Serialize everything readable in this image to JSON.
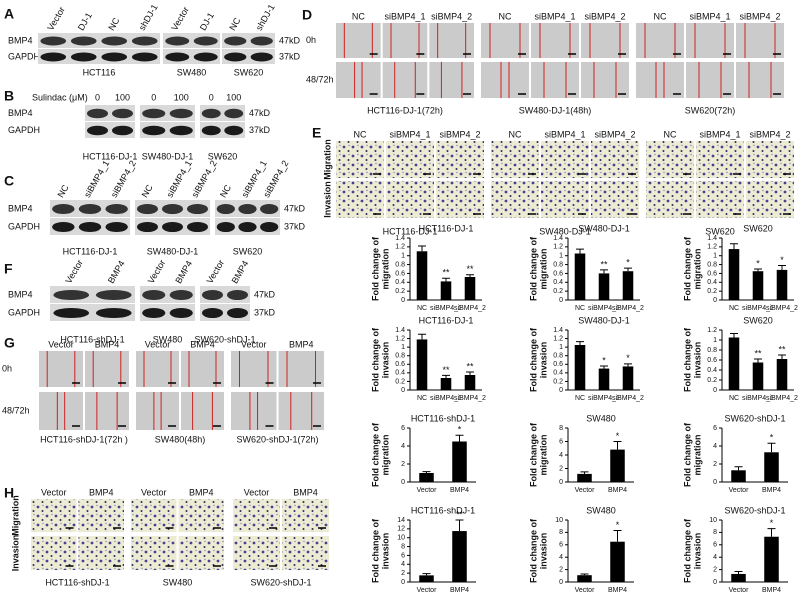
{
  "blots": [
    {
      "label": "A",
      "lanes": [
        [
          "Vector",
          "DJ-1",
          "NC",
          "shDJ-1"
        ],
        [
          "Vector",
          "DJ-1"
        ],
        [
          "NC",
          "shDJ-1"
        ]
      ],
      "rows": [
        "BMP4",
        "GAPDH"
      ],
      "sizes": [
        "47kD",
        "37kD"
      ],
      "cells": [
        "HCT116",
        "SW480",
        "SW620"
      ]
    },
    {
      "label": "B",
      "treatment": "Sulindac (μM)",
      "lanes": [
        [
          "0",
          "100"
        ],
        [
          "0",
          "100"
        ],
        [
          "0",
          "100"
        ]
      ],
      "rows": [
        "BMP4",
        "GAPDH"
      ],
      "sizes": [
        "47kD",
        "37kD"
      ],
      "cells": [
        "HCT116-DJ-1",
        "SW480-DJ-1",
        "SW620"
      ]
    },
    {
      "label": "C",
      "lanes": [
        [
          "NC",
          "siBMP4_1",
          "siBMP4_2"
        ],
        [
          "NC",
          "siBMP4_1",
          "siBMP4_2"
        ],
        [
          "NC",
          "siBMP4_1",
          "siBMP4_2"
        ]
      ],
      "rows": [
        "BMP4",
        "GAPDH"
      ],
      "sizes": [
        "47kD",
        "37kD"
      ],
      "cells": [
        "HCT116-DJ-1",
        "SW480-DJ-1",
        "SW620"
      ]
    },
    {
      "label": "F",
      "lanes": [
        [
          "Vector",
          "BMP4"
        ],
        [
          "Vector",
          "BMP4"
        ],
        [
          "Vector",
          "BMP4"
        ]
      ],
      "rows": [
        "BMP4",
        "GAPDH"
      ],
      "sizes": [
        "47kD",
        "37kD"
      ],
      "cells": [
        "HCT116-shDJ-1",
        "SW480",
        "SW620-shDJ-1"
      ]
    }
  ],
  "assays": [
    {
      "label": "D",
      "kind": "wound",
      "columns": [
        "NC",
        "siBMP4_1",
        "siBMP4_2"
      ],
      "rows": [
        "0h",
        "48/72h"
      ],
      "cells": [
        "HCT116-DJ-1(72h)",
        "SW480-DJ-1(48h)",
        "SW620(72h)"
      ]
    },
    {
      "label": "E",
      "kind": "transwell",
      "columns": [
        "NC",
        "siBMP4_1",
        "siBMP4_2"
      ],
      "rows": [
        "Migration",
        "Invasion"
      ],
      "cells": [
        "HCT116-DJ-1",
        "SW480-DJ-1",
        "SW620"
      ]
    },
    {
      "label": "G",
      "kind": "wound",
      "columns": [
        "Vector",
        "BMP4"
      ],
      "rows": [
        "0h",
        "48/72h"
      ],
      "cells": [
        "HCT116-shDJ-1(72h )",
        "SW480(48h)",
        "SW620-shDJ-1(72h)"
      ]
    },
    {
      "label": "H",
      "kind": "transwell",
      "columns": [
        "Vector",
        "BMP4"
      ],
      "rows": [
        "Migration",
        "Invasion"
      ],
      "cells": [
        "HCT116-shDJ-1",
        "SW480",
        "SW620-shDJ-1"
      ]
    }
  ],
  "charts": [
    {
      "type": "bar",
      "title": "HCT116-DJ-1",
      "ylabel": [
        "Fold change of",
        "migration"
      ],
      "categories": [
        "NC",
        "siBMP4_1",
        "siBMP4_2"
      ],
      "values": [
        1.1,
        0.42,
        0.52
      ],
      "errors": [
        0.12,
        0.07,
        0.05
      ],
      "significance": [
        null,
        "**",
        "**"
      ],
      "ylim": [
        0,
        1.4
      ],
      "yticks": [
        0,
        0.2,
        0.4,
        0.6,
        0.8,
        1,
        1.2,
        1.4
      ],
      "color": "#000000"
    },
    {
      "type": "bar",
      "title": "SW480-DJ-1",
      "ylabel": [
        "Fold change of",
        "migration"
      ],
      "categories": [
        "NC",
        "siBMP4_1",
        "siBMP4_2"
      ],
      "values": [
        1.05,
        0.6,
        0.65
      ],
      "errors": [
        0.1,
        0.08,
        0.07
      ],
      "significance": [
        null,
        "**",
        "*"
      ],
      "ylim": [
        0,
        1.4
      ],
      "yticks": [
        0,
        0.2,
        0.4,
        0.6,
        0.8,
        1,
        1.2,
        1.4
      ],
      "color": "#000000"
    },
    {
      "type": "bar",
      "title": "SW620",
      "ylabel": [
        "Fold change of",
        "migration"
      ],
      "categories": [
        "NC",
        "siBMP4_1",
        "siBMP4_2"
      ],
      "values": [
        1.15,
        0.65,
        0.68
      ],
      "errors": [
        0.12,
        0.05,
        0.1
      ],
      "significance": [
        null,
        "*",
        "*"
      ],
      "ylim": [
        0,
        1.4
      ],
      "yticks": [
        0,
        0.2,
        0.4,
        0.6,
        0.8,
        1,
        1.2,
        1.4
      ],
      "color": "#000000"
    },
    {
      "type": "bar",
      "title": "HCT116-DJ-1",
      "ylabel": [
        "Fold change of",
        "invasion"
      ],
      "categories": [
        "NC",
        "siBMP4_1",
        "siBMP4_2"
      ],
      "values": [
        1.18,
        0.28,
        0.35
      ],
      "errors": [
        0.12,
        0.06,
        0.07
      ],
      "significance": [
        null,
        "**",
        "**"
      ],
      "ylim": [
        0,
        1.4
      ],
      "yticks": [
        0,
        0.2,
        0.4,
        0.6,
        0.8,
        1,
        1.2,
        1.4
      ],
      "color": "#000000"
    },
    {
      "type": "bar",
      "title": "SW480-DJ-1",
      "ylabel": [
        "Fold change of",
        "invasion"
      ],
      "categories": [
        "NC",
        "siBMP4_1",
        "siBMP4_2"
      ],
      "values": [
        1.05,
        0.5,
        0.55
      ],
      "errors": [
        0.08,
        0.06,
        0.06
      ],
      "significance": [
        null,
        "*",
        "*"
      ],
      "ylim": [
        0,
        1.4
      ],
      "yticks": [
        0,
        0.2,
        0.4,
        0.6,
        0.8,
        1,
        1.2,
        1.4
      ],
      "color": "#000000"
    },
    {
      "type": "bar",
      "title": "SW620",
      "ylabel": [
        "Fold change of",
        "invasion"
      ],
      "categories": [
        "NC",
        "siBMP4_1",
        "siBMP4_2"
      ],
      "values": [
        1.05,
        0.55,
        0.62
      ],
      "errors": [
        0.08,
        0.07,
        0.08
      ],
      "significance": [
        null,
        "**",
        "**"
      ],
      "ylim": [
        0,
        1.2
      ],
      "yticks": [
        0,
        0.2,
        0.4,
        0.6,
        0.8,
        1,
        1.2
      ],
      "color": "#000000"
    },
    {
      "type": "bar",
      "title": "HCT116-shDJ-1",
      "ylabel": [
        "Fold change of",
        "migration"
      ],
      "categories": [
        "Vector",
        "BMP4"
      ],
      "values": [
        1,
        4.5
      ],
      "errors": [
        0.15,
        0.7
      ],
      "significance": [
        null,
        "*"
      ],
      "ylim": [
        0,
        6
      ],
      "yticks": [
        0,
        2,
        4,
        6
      ],
      "color": "#000000"
    },
    {
      "type": "bar",
      "title": "SW480",
      "ylabel": [
        "Fold change of",
        "migration"
      ],
      "categories": [
        "Vector",
        "BMP4"
      ],
      "values": [
        1.2,
        4.8
      ],
      "errors": [
        0.3,
        1.2
      ],
      "significance": [
        null,
        "*"
      ],
      "ylim": [
        0,
        8
      ],
      "yticks": [
        0,
        2,
        4,
        6,
        8
      ],
      "color": "#000000"
    },
    {
      "type": "bar",
      "title": "SW620-shDJ-1",
      "ylabel": [
        "Fold change of",
        "migration"
      ],
      "categories": [
        "Vector",
        "BMP4"
      ],
      "values": [
        1.3,
        3.3
      ],
      "errors": [
        0.4,
        1
      ],
      "significance": [
        null,
        "*"
      ],
      "ylim": [
        0,
        6
      ],
      "yticks": [
        0,
        2,
        4,
        6
      ],
      "color": "#000000"
    },
    {
      "type": "bar",
      "title": "HCT116-shDJ-1",
      "ylabel": [
        "Fold change of",
        "invasion"
      ],
      "categories": [
        "Vector",
        "BMP4"
      ],
      "values": [
        1.5,
        11.5
      ],
      "errors": [
        0.4,
        2.5
      ],
      "significance": [
        null,
        "**"
      ],
      "ylim": [
        0,
        14
      ],
      "yticks": [
        0,
        2,
        4,
        6,
        8,
        10,
        12,
        14
      ],
      "color": "#000000"
    },
    {
      "type": "bar",
      "title": "SW480",
      "ylabel": [
        "Fold change of",
        "invasion"
      ],
      "categories": [
        "Vector",
        "BMP4"
      ],
      "values": [
        1.1,
        6.5
      ],
      "errors": [
        0.2,
        1.8
      ],
      "significance": [
        null,
        "*"
      ],
      "ylim": [
        0,
        10
      ],
      "yticks": [
        0,
        2,
        4,
        6,
        8,
        10
      ],
      "color": "#000000"
    },
    {
      "type": "bar",
      "title": "SW620-shDJ-1",
      "ylabel": [
        "Fold change of",
        "invasion"
      ],
      "categories": [
        "Vector",
        "BMP4"
      ],
      "values": [
        1.3,
        7.3
      ],
      "errors": [
        0.4,
        1.3
      ],
      "significance": [
        null,
        "*"
      ],
      "ylim": [
        0,
        10
      ],
      "yticks": [
        0,
        2,
        4,
        6,
        8,
        10
      ],
      "color": "#000000"
    }
  ]
}
